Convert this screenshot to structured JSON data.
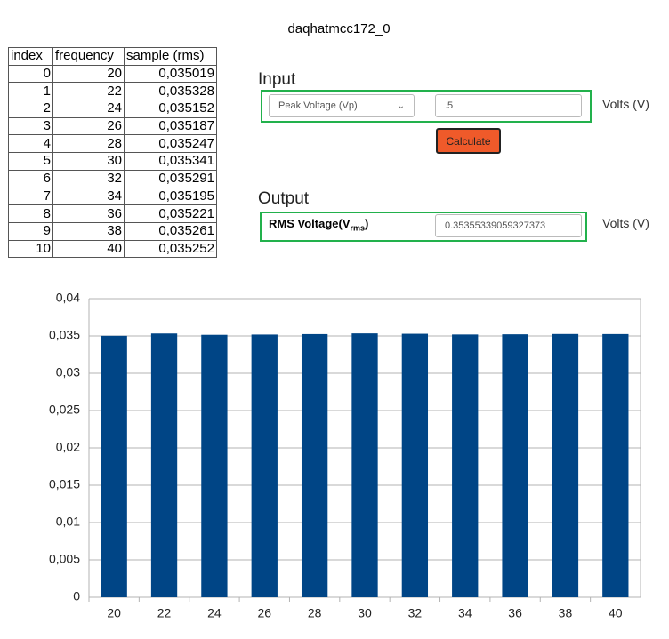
{
  "title": "daqhatmcc172_0",
  "table": {
    "headers": [
      "index",
      "frequency",
      "sample (rms)"
    ],
    "rows": [
      [
        "0",
        "20",
        "0,035019"
      ],
      [
        "1",
        "22",
        "0,035328"
      ],
      [
        "2",
        "24",
        "0,035152"
      ],
      [
        "3",
        "26",
        "0,035187"
      ],
      [
        "4",
        "28",
        "0,035247"
      ],
      [
        "5",
        "30",
        "0,035341"
      ],
      [
        "6",
        "32",
        "0,035291"
      ],
      [
        "7",
        "34",
        "0,035195"
      ],
      [
        "8",
        "36",
        "0,035221"
      ],
      [
        "9",
        "38",
        "0,035261"
      ],
      [
        "10",
        "40",
        "0,035252"
      ]
    ]
  },
  "input": {
    "heading": "Input",
    "select": "Peak Voltage (Vp)",
    "value": ".5",
    "unit": "Volts (V)",
    "button": "Calculate"
  },
  "output": {
    "heading": "Output",
    "label": {
      "text": "RMS Voltage(V",
      "sub": "rms",
      "end": ")"
    },
    "value": "0.35355339059327373",
    "unit": "Volts (V)"
  },
  "chart_data": {
    "type": "bar",
    "categories": [
      "20",
      "22",
      "24",
      "26",
      "28",
      "30",
      "32",
      "34",
      "36",
      "38",
      "40"
    ],
    "values": [
      0.035019,
      0.035328,
      0.035152,
      0.035187,
      0.035247,
      0.035341,
      0.035291,
      0.035195,
      0.035221,
      0.035261,
      0.035252
    ],
    "color": "#004586",
    "ylim": [
      0,
      0.04
    ],
    "yticks": [
      0,
      {
        "value": 0.005,
        "label": "0,005"
      },
      {
        "value": 0.01,
        "label": "0,01"
      },
      {
        "value": 0.015,
        "label": "0,015"
      },
      {
        "value": 0.02,
        "label": "0,02"
      },
      {
        "value": 0.025,
        "label": "0,025"
      },
      {
        "value": 0.03,
        "label": "0,03"
      },
      {
        "value": 0.035,
        "label": "0,035"
      },
      {
        "value": 0.04,
        "label": "0,04"
      }
    ],
    "grid": true
  }
}
